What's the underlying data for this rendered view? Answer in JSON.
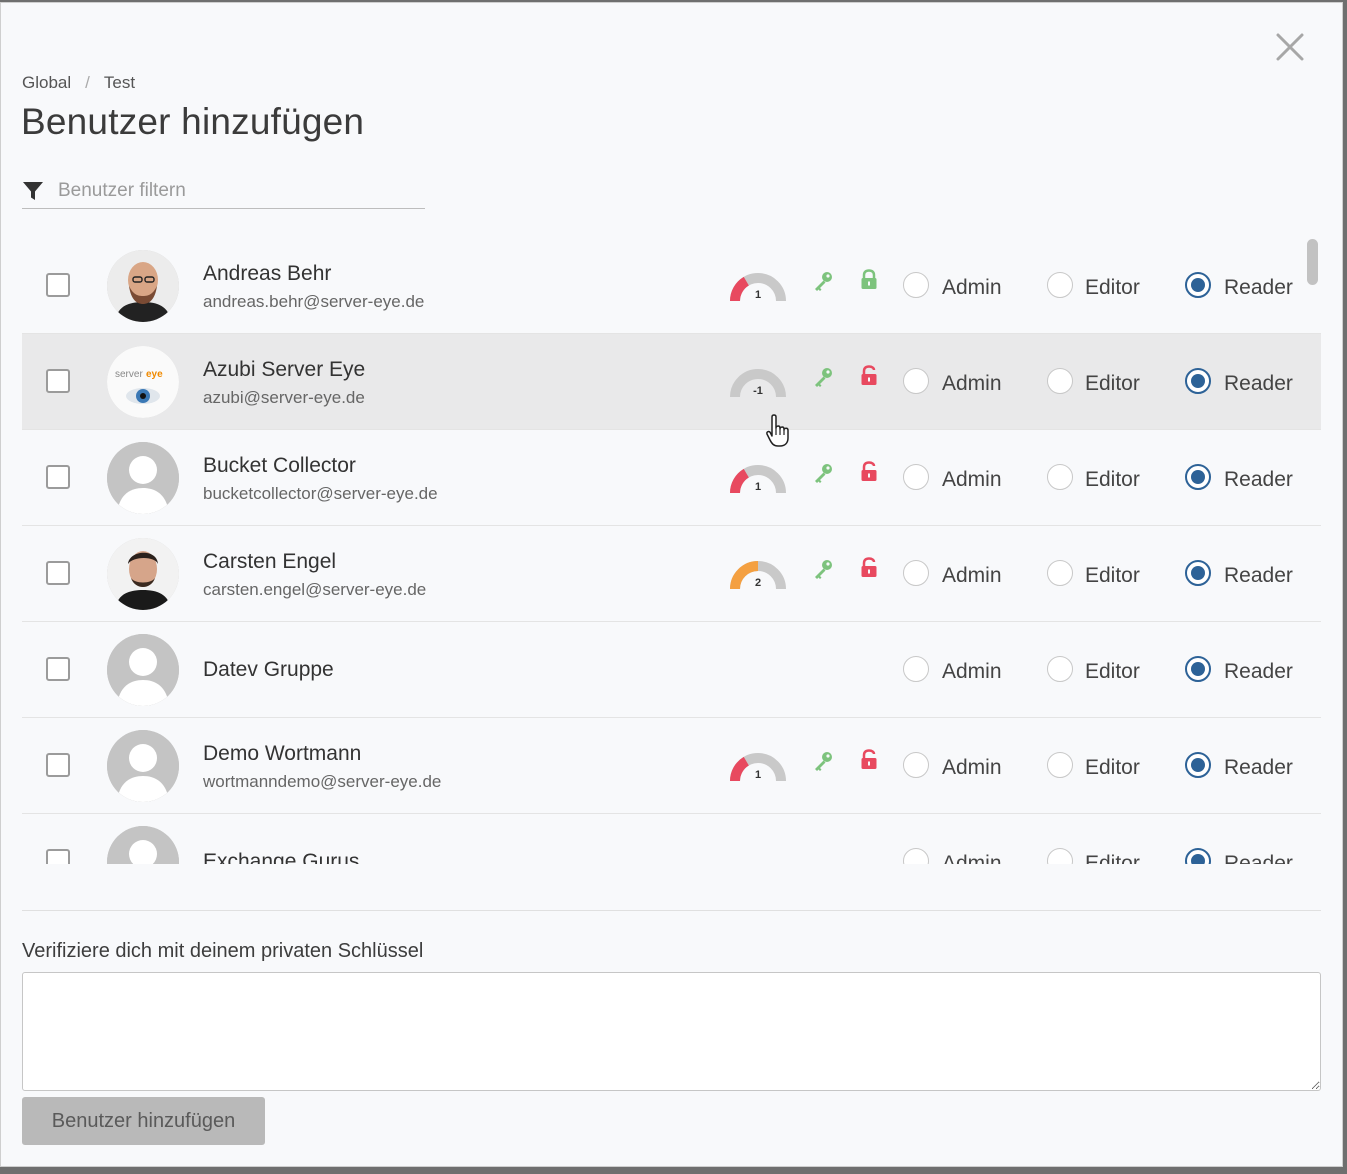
{
  "breadcrumb": {
    "root": "Global",
    "separator": "/",
    "current": "Test"
  },
  "title": "Benutzer hinzufügen",
  "filter": {
    "placeholder": "Benutzer filtern",
    "icon": "filter-icon"
  },
  "role_labels": {
    "admin": "Admin",
    "editor": "Editor",
    "reader": "Reader"
  },
  "colors": {
    "red": "#e8495f",
    "orange": "#f4a041",
    "green": "#7dc37d",
    "blue": "#2d6297",
    "gray": "#c9c9c9"
  },
  "users": [
    {
      "name": "Andreas Behr",
      "email": "andreas.behr@server-eye.de",
      "gauge": "1",
      "gauge_color": "red",
      "gauge_fill": 0.33,
      "key": true,
      "lock": "locked-green",
      "role": "reader",
      "avatar": "photo-bald-beard"
    },
    {
      "name": "Azubi Server Eye",
      "email": "azubi@server-eye.de",
      "gauge": "-1",
      "gauge_color": "gray",
      "gauge_fill": 0,
      "key": true,
      "lock": "unlocked-red",
      "role": "reader",
      "avatar": "servereye-logo",
      "logo_text": "servereye"
    },
    {
      "name": "Bucket Collector",
      "email": "bucketcollector@server-eye.de",
      "gauge": "1",
      "gauge_color": "red",
      "gauge_fill": 0.33,
      "key": true,
      "lock": "unlocked-red",
      "role": "reader",
      "avatar": "placeholder"
    },
    {
      "name": "Carsten Engel",
      "email": "carsten.engel@server-eye.de",
      "gauge": "2",
      "gauge_color": "orange",
      "gauge_fill": 0.5,
      "key": true,
      "lock": "unlocked-red",
      "role": "reader",
      "avatar": "photo-dark-hair"
    },
    {
      "name": "Datev Gruppe",
      "email": "",
      "gauge": "",
      "key": false,
      "lock": "",
      "role": "reader",
      "avatar": "placeholder"
    },
    {
      "name": "Demo Wortmann",
      "email": "wortmanndemo@server-eye.de",
      "gauge": "1",
      "gauge_color": "red",
      "gauge_fill": 0.33,
      "key": true,
      "lock": "unlocked-red",
      "role": "reader",
      "avatar": "placeholder"
    },
    {
      "name": "Exchange Gurus",
      "email": "",
      "gauge": "",
      "key": false,
      "lock": "",
      "role": "reader",
      "avatar": "placeholder"
    }
  ],
  "verify": {
    "label": "Verifiziere dich mit deinem privaten Schlüssel",
    "value": ""
  },
  "submit_label": "Benutzer hinzufügen"
}
